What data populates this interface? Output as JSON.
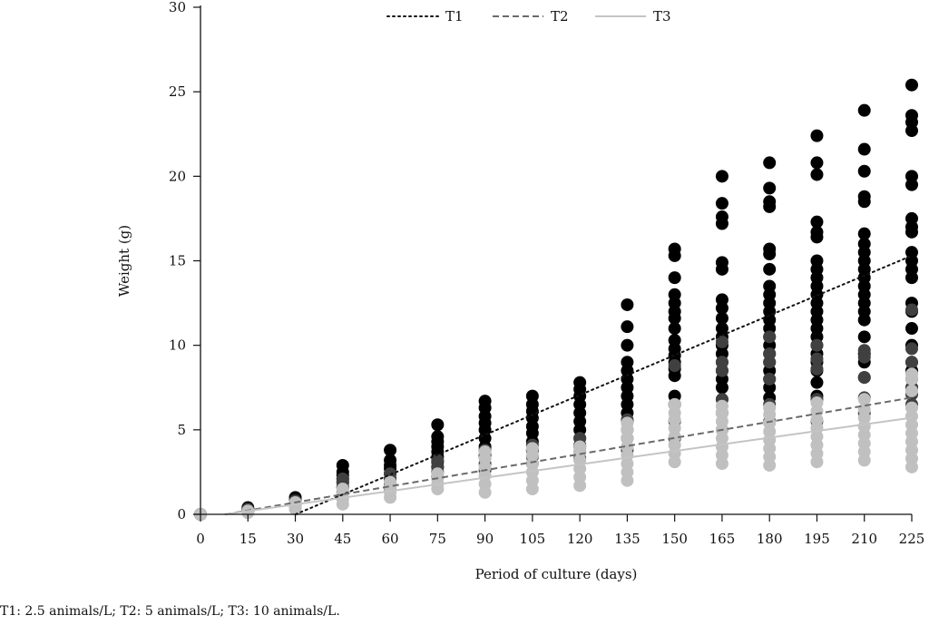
{
  "chart_data": {
    "type": "scatter",
    "title": "",
    "xlabel": "Period of culture (days)",
    "ylabel": "Weight (g)",
    "xlim": [
      0,
      225
    ],
    "ylim": [
      0,
      30
    ],
    "xticks": [
      0,
      15,
      30,
      45,
      60,
      75,
      90,
      105,
      120,
      135,
      150,
      165,
      180,
      195,
      210,
      225
    ],
    "yticks": [
      0,
      5,
      10,
      15,
      20,
      25,
      30
    ],
    "grid": false,
    "legend_position": "top-center",
    "series": [
      {
        "name": "T1",
        "color": "#000000",
        "trendline_style": "dotted",
        "trendline": {
          "slope": 0.0785,
          "intercept": -2.36
        },
        "points": {
          "0": [
            0
          ],
          "15": [
            0.2,
            0.3,
            0.4
          ],
          "30": [
            0.6,
            0.8,
            1.0
          ],
          "45": [
            1.6,
            1.9,
            2.1,
            2.3,
            2.5,
            2.9
          ],
          "60": [
            1.8,
            2.1,
            2.4,
            2.7,
            2.9,
            3.2,
            3.8
          ],
          "75": [
            2.8,
            3.1,
            3.4,
            3.7,
            4.0,
            4.3,
            4.6,
            5.3
          ],
          "90": [
            3.5,
            4.0,
            4.5,
            5.0,
            5.4,
            5.8,
            6.3,
            6.7
          ],
          "105": [
            3.8,
            4.3,
            4.8,
            5.2,
            5.7,
            6.1,
            6.5,
            7.0
          ],
          "120": [
            4.0,
            4.5,
            5.0,
            5.5,
            6.0,
            6.5,
            7.0,
            7.4,
            7.8
          ],
          "135": [
            5.5,
            6.0,
            6.5,
            7.0,
            7.5,
            8.0,
            8.5,
            9.0,
            10.0,
            11.1,
            12.4
          ],
          "150": [
            6.5,
            7.0,
            8.2,
            8.6,
            9.0,
            9.4,
            9.8,
            10.3,
            11.0,
            11.6,
            12.0,
            12.5,
            13.0,
            14.0,
            15.3,
            15.7
          ],
          "165": [
            6.8,
            7.5,
            8.0,
            8.5,
            9.0,
            9.5,
            10.0,
            10.5,
            11.0,
            11.6,
            12.2,
            12.7,
            14.5,
            14.9,
            17.2,
            17.6,
            18.4,
            20.0
          ],
          "180": [
            6.9,
            7.5,
            8.0,
            8.5,
            9.0,
            9.5,
            10.0,
            10.5,
            11.0,
            11.5,
            12.0,
            12.5,
            13.0,
            13.5,
            14.5,
            15.4,
            15.7,
            18.2,
            18.5,
            19.3,
            20.8
          ],
          "195": [
            7.0,
            7.8,
            8.5,
            9.0,
            9.5,
            10.0,
            10.5,
            11.0,
            11.5,
            12.0,
            12.5,
            13.0,
            13.5,
            14.0,
            14.5,
            15.0,
            16.4,
            16.7,
            17.3,
            20.1,
            20.8,
            22.4
          ],
          "210": [
            8.1,
            9.0,
            9.5,
            10.5,
            11.5,
            12.0,
            12.5,
            13.0,
            13.5,
            14.0,
            14.5,
            15.0,
            15.5,
            16.0,
            16.6,
            18.5,
            18.8,
            20.3,
            21.6,
            23.9
          ],
          "225": [
            7.5,
            8.5,
            9.0,
            10.0,
            11.0,
            12.0,
            12.5,
            14.0,
            14.5,
            15.0,
            15.5,
            16.7,
            17.0,
            17.5,
            19.5,
            20.0,
            22.7,
            23.2,
            23.6,
            25.4
          ]
        }
      },
      {
        "name": "T2",
        "color": "#404040",
        "trendline_style": "dashed",
        "trendline": {
          "slope": 0.0318,
          "intercept": -0.25
        },
        "points": {
          "0": [
            0
          ],
          "15": [
            0.2,
            0.3
          ],
          "30": [
            0.5,
            0.7,
            0.8
          ],
          "45": [
            1.3,
            1.6,
            1.9,
            2.1
          ],
          "60": [
            1.5,
            1.8,
            2.1,
            2.4
          ],
          "75": [
            2.2,
            2.5,
            2.8,
            3.2
          ],
          "90": [
            2.6,
            3.0,
            3.4,
            3.8
          ],
          "105": [
            3.0,
            3.4,
            3.8,
            4.1
          ],
          "120": [
            3.3,
            3.7,
            4.1,
            4.5
          ],
          "135": [
            3.8,
            4.5,
            5.0,
            5.6
          ],
          "150": [
            4.5,
            5.5,
            6.5,
            8.8
          ],
          "165": [
            5.0,
            6.0,
            6.8,
            8.5,
            9.0,
            10.2
          ],
          "180": [
            5.5,
            6.5,
            8.0,
            9.0,
            9.5,
            10.5
          ],
          "195": [
            5.5,
            6.8,
            8.6,
            9.2,
            10.0
          ],
          "210": [
            6.0,
            6.9,
            8.1,
            9.3,
            9.7
          ],
          "225": [
            6.5,
            7.1,
            7.5,
            8.0,
            9.0,
            9.8,
            12.1
          ]
        }
      },
      {
        "name": "T3",
        "color": "#c0c0c0",
        "trendline_style": "solid",
        "trendline": {
          "slope": 0.0263,
          "intercept": -0.2
        },
        "points": {
          "0": [
            0
          ],
          "15": [
            0.1,
            0.2
          ],
          "30": [
            0.3,
            0.5,
            0.7
          ],
          "45": [
            0.6,
            0.9,
            1.2,
            1.5
          ],
          "60": [
            1.0,
            1.3,
            1.6,
            1.9
          ],
          "75": [
            1.5,
            1.8,
            2.1,
            2.4
          ],
          "90": [
            1.3,
            1.8,
            2.3,
            2.8,
            3.3,
            3.7
          ],
          "105": [
            1.5,
            2.0,
            2.5,
            3.0,
            3.5,
            3.9
          ],
          "120": [
            1.7,
            2.2,
            2.7,
            3.2,
            3.7,
            4.0
          ],
          "135": [
            2.0,
            2.5,
            3.0,
            3.5,
            4.0,
            4.5,
            5.0,
            5.4
          ],
          "150": [
            3.1,
            3.6,
            4.1,
            4.6,
            5.1,
            5.6,
            6.0,
            6.5
          ],
          "165": [
            3.0,
            3.5,
            4.0,
            4.5,
            5.0,
            5.5,
            6.0,
            6.4
          ],
          "180": [
            2.9,
            3.4,
            3.9,
            4.4,
            4.9,
            5.4,
            5.9,
            6.3
          ],
          "195": [
            3.1,
            3.6,
            4.1,
            4.6,
            5.1,
            5.6,
            6.1,
            6.6
          ],
          "210": [
            3.2,
            3.7,
            4.2,
            4.7,
            5.2,
            5.7,
            6.2,
            6.8
          ],
          "225": [
            2.8,
            3.3,
            3.8,
            4.3,
            4.8,
            5.3,
            5.8,
            6.3,
            7.3,
            8.0,
            8.3
          ]
        }
      }
    ]
  },
  "footnote": "T1: 2.5 animals/L; T2: 5 animals/L; T3: 10 animals/L."
}
